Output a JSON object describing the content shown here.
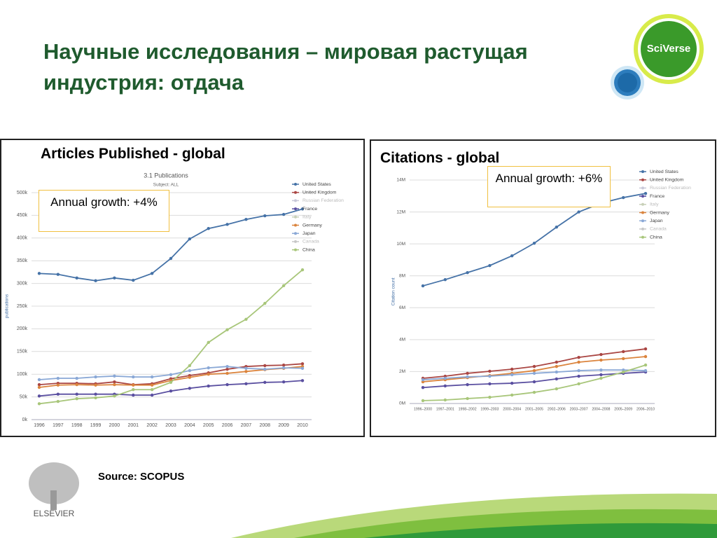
{
  "title": "Научные исследования – мировая растущая индустрия: отдача",
  "logo": "SciVerse",
  "publisher": "ELSEVIER",
  "source": "Source:  SCOPUS",
  "chart_data": [
    {
      "type": "line",
      "heading": "Articles Published - global",
      "title": "3.1 Publications",
      "subtitle": "Subject: ALL",
      "annotation": "Annual growth: +4%",
      "ylabel": "publications",
      "categories": [
        "1996",
        "1997",
        "1998",
        "1999",
        "2000",
        "2001",
        "2002",
        "2003",
        "2004",
        "2005",
        "2006",
        "2007",
        "2008",
        "2009",
        "2010"
      ],
      "ylim": [
        0,
        500000
      ],
      "yticks": [
        {
          "value": 0,
          "label": "0k"
        },
        {
          "value": 50000,
          "label": "50k"
        },
        {
          "value": 100000,
          "label": "100k"
        },
        {
          "value": 150000,
          "label": "150k"
        },
        {
          "value": 200000,
          "label": "200k"
        },
        {
          "value": 250000,
          "label": "250k"
        },
        {
          "value": 300000,
          "label": "300k"
        },
        {
          "value": 350000,
          "label": "350k"
        },
        {
          "value": 400000,
          "label": "400k"
        },
        {
          "value": 450000,
          "label": "450k"
        },
        {
          "value": 500000,
          "label": "500k"
        }
      ],
      "grid": true,
      "series": [
        {
          "name": "United States",
          "color": "#4572a7",
          "values": [
            322000,
            320000,
            312000,
            306000,
            312000,
            307000,
            322000,
            355000,
            398000,
            421000,
            430000,
            441000,
            449000,
            452000,
            464000
          ]
        },
        {
          "name": "United Kingdom",
          "color": "#aa4643",
          "values": [
            77000,
            80000,
            80000,
            79000,
            83000,
            77000,
            79000,
            90000,
            97000,
            103000,
            111000,
            117000,
            119000,
            120000,
            123000
          ]
        },
        {
          "name": "Russian Federation",
          "color": "#c8c8d8",
          "visible": false,
          "values": [
            null,
            null,
            null,
            null,
            null,
            null,
            null,
            null,
            null,
            null,
            null,
            null,
            null,
            null,
            null
          ]
        },
        {
          "name": "France",
          "color": "#5a4fa0",
          "values": [
            52000,
            56000,
            56000,
            56000,
            56000,
            54000,
            54000,
            63000,
            69000,
            74000,
            77000,
            79000,
            82000,
            83000,
            86000
          ]
        },
        {
          "name": "Italy",
          "color": "#c8d0b8",
          "visible": false,
          "values": [
            null,
            null,
            null,
            null,
            null,
            null,
            null,
            null,
            null,
            null,
            null,
            null,
            null,
            null,
            null
          ]
        },
        {
          "name": "Germany",
          "color": "#db843d",
          "values": [
            71000,
            76000,
            77000,
            76000,
            77000,
            76000,
            76000,
            86000,
            93000,
            100000,
            102000,
            106000,
            110000,
            113000,
            117000
          ]
        },
        {
          "name": "Japan",
          "color": "#8aa8d6",
          "values": [
            88000,
            91000,
            91000,
            94000,
            96000,
            94000,
            94000,
            99000,
            108000,
            114000,
            117000,
            113000,
            111000,
            114000,
            113000
          ]
        },
        {
          "name": "Canada",
          "color": "#c8c8c8",
          "visible": false,
          "values": [
            null,
            null,
            null,
            null,
            null,
            null,
            null,
            null,
            null,
            null,
            null,
            null,
            null,
            null,
            null
          ]
        },
        {
          "name": "China",
          "color": "#a8c67a",
          "values": [
            35000,
            40000,
            46000,
            48000,
            52000,
            66000,
            66000,
            82000,
            119000,
            170000,
            198000,
            221000,
            256000,
            295000,
            330000
          ]
        }
      ]
    },
    {
      "type": "line",
      "heading": "Citations - global",
      "annotation": "Annual growth: +6%",
      "ylabel": "Citation count",
      "categories": [
        "1996–2000",
        "1997–2001",
        "1998–2002",
        "1999–2003",
        "2000–2004",
        "2001–2005",
        "2002–2006",
        "2003–2007",
        "2004–2008",
        "2005–2009",
        "2006–2010"
      ],
      "ylim": [
        0,
        14000000
      ],
      "yticks": [
        {
          "value": 0,
          "label": "0M"
        },
        {
          "value": 2000000,
          "label": "2M"
        },
        {
          "value": 4000000,
          "label": "4M"
        },
        {
          "value": 6000000,
          "label": "6M"
        },
        {
          "value": 8000000,
          "label": "8M"
        },
        {
          "value": 10000000,
          "label": "10M"
        },
        {
          "value": 12000000,
          "label": "12M"
        },
        {
          "value": 14000000,
          "label": "14M"
        }
      ],
      "grid": true,
      "series": [
        {
          "name": "United States",
          "color": "#4572a7",
          "values": [
            7370000,
            7760000,
            8200000,
            8640000,
            9250000,
            10040000,
            11050000,
            12000000,
            12550000,
            12900000,
            13160000
          ]
        },
        {
          "name": "United Kingdom",
          "color": "#aa4643",
          "values": [
            1580000,
            1710000,
            1890000,
            2020000,
            2150000,
            2320000,
            2590000,
            2890000,
            3070000,
            3250000,
            3420000
          ]
        },
        {
          "name": "Russian Federation",
          "color": "#c8c8d8",
          "visible": false,
          "values": [
            null,
            null,
            null,
            null,
            null,
            null,
            null,
            null,
            null,
            null,
            null
          ]
        },
        {
          "name": "France",
          "color": "#5a4fa0",
          "values": [
            1000000,
            1100000,
            1180000,
            1230000,
            1270000,
            1360000,
            1540000,
            1710000,
            1800000,
            1890000,
            1970000
          ]
        },
        {
          "name": "Italy",
          "color": "#c8d0b8",
          "visible": false,
          "values": [
            null,
            null,
            null,
            null,
            null,
            null,
            null,
            null,
            null,
            null,
            null
          ]
        },
        {
          "name": "Germany",
          "color": "#db843d",
          "values": [
            1360000,
            1490000,
            1620000,
            1750000,
            1890000,
            2060000,
            2320000,
            2590000,
            2720000,
            2810000,
            2940000
          ]
        },
        {
          "name": "Japan",
          "color": "#8aa8d6",
          "values": [
            1490000,
            1580000,
            1670000,
            1710000,
            1800000,
            1890000,
            1970000,
            2060000,
            2100000,
            2100000,
            2060000
          ]
        },
        {
          "name": "Canada",
          "color": "#c8c8c8",
          "visible": false,
          "values": [
            null,
            null,
            null,
            null,
            null,
            null,
            null,
            null,
            null,
            null,
            null
          ]
        },
        {
          "name": "China",
          "color": "#a8c67a",
          "values": [
            180000,
            220000,
            310000,
            390000,
            530000,
            700000,
            920000,
            1230000,
            1580000,
            1970000,
            2410000
          ]
        }
      ]
    }
  ]
}
